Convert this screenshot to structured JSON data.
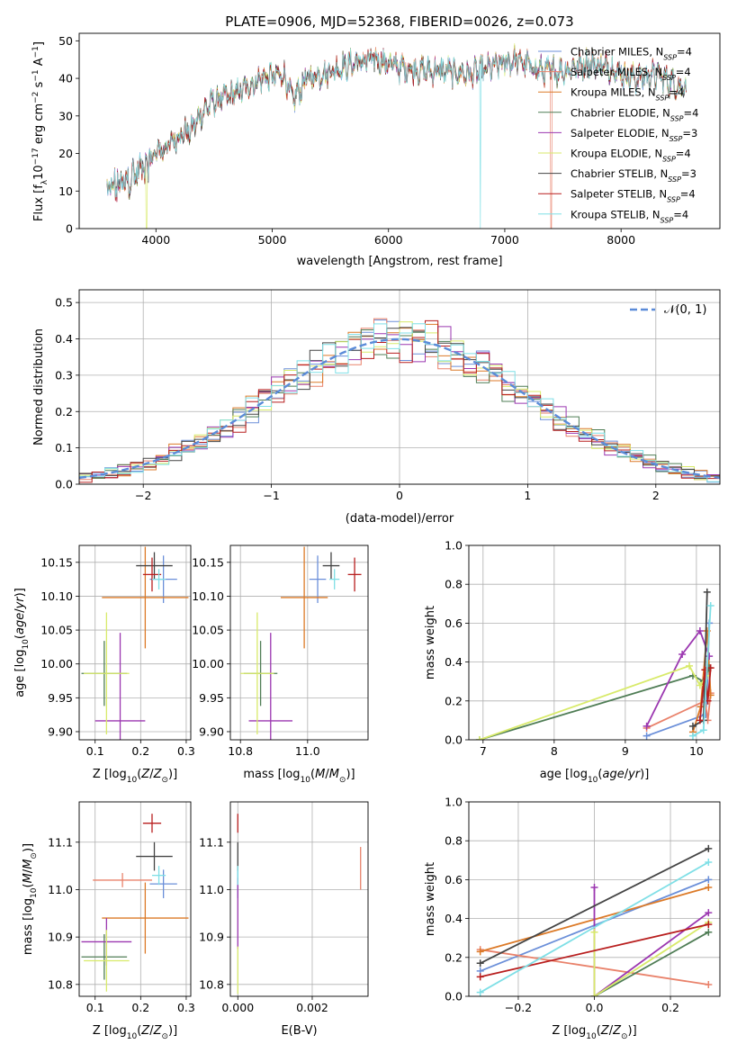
{
  "figure_title": "PLATE=0906, MJD=52368, FIBERID=0026, z=0.073",
  "series_colors": [
    "#6b8fd9",
    "#e9826b",
    "#dc7a28",
    "#4f7d55",
    "#9b37b0",
    "#d8ea6a",
    "#444444",
    "#b81e1e",
    "#7fdfe6"
  ],
  "chart_data": [
    {
      "id": "spectrum",
      "type": "line",
      "title": "PLATE=0906, MJD=52368, FIBERID=0026, z=0.073",
      "xlabel": "wavelength [Angstrom, rest frame]",
      "ylabel": "Flux [f_λ 10^-17 erg cm^-2 s^-1 A^-1]",
      "xlim": [
        3340,
        8850
      ],
      "ylim": [
        0,
        52
      ],
      "xticks": [
        4000,
        5000,
        6000,
        7000,
        8000
      ],
      "yticks": [
        0,
        10,
        20,
        30,
        40,
        50
      ],
      "legend_position": "right",
      "series": [
        {
          "name": "Chabrier MILES, N_SSP=4"
        },
        {
          "name": "Salpeter MILES, N_SSP=4"
        },
        {
          "name": "Kroupa MILES, N_SSP=4"
        },
        {
          "name": "Chabrier ELODIE, N_SSP=4"
        },
        {
          "name": "Salpeter ELODIE, N_SSP=3"
        },
        {
          "name": "Kroupa ELODIE, N_SSP=4"
        },
        {
          "name": "Chabrier STELIB, N_SSP=3"
        },
        {
          "name": "Salpeter STELIB, N_SSP=4"
        },
        {
          "name": "Kroupa STELIB, N_SSP=4"
        }
      ],
      "continuum": {
        "x": [
          3580,
          3700,
          3800,
          3900,
          4000,
          4100,
          4200,
          4300,
          4400,
          4500,
          4700,
          4900,
          5100,
          5175,
          5300,
          5500,
          5700,
          5900,
          6100,
          6300,
          6500,
          6700,
          6900,
          7100,
          7300,
          7500,
          7700,
          7900,
          8100,
          8300,
          8500
        ],
        "y": [
          10,
          12,
          14,
          16,
          20,
          22,
          25,
          26,
          31,
          34,
          36,
          40,
          41,
          34,
          40,
          42,
          44,
          45,
          43,
          42,
          42,
          41,
          43,
          45,
          42,
          42,
          44,
          43,
          40,
          41,
          38
        ]
      },
      "drop_edges": {
        "x": [
          3920,
          6790,
          7400
        ],
        "series": [
          5,
          8,
          1
        ]
      }
    },
    {
      "id": "residual-hist",
      "type": "line",
      "xlabel": "(data-model)/error",
      "ylabel": "Normed distribution",
      "xlim": [
        -2.5,
        2.5
      ],
      "ylim": [
        0,
        0.535
      ],
      "xticks": [
        -2,
        -1,
        0,
        1,
        2
      ],
      "yticks": [
        0.0,
        0.1,
        0.2,
        0.3,
        0.4,
        0.5
      ],
      "grid": true,
      "legend": "N(0, 1)",
      "legend_position": "upper-right",
      "bin_width": 0.1
    },
    {
      "id": "age-vs-z",
      "type": "scatter",
      "xlabel": "Z [log10(Z/Z_sun)]",
      "ylabel": "age [log10(age/yr)]",
      "xlim": [
        0.065,
        0.31
      ],
      "ylim": [
        9.888,
        10.175
      ],
      "xticks": [
        0.1,
        0.2,
        0.3
      ],
      "xtick_labels": [
        "0.1",
        "0.2",
        "0.3"
      ],
      "yticks": [
        9.9,
        9.95,
        10.0,
        10.05,
        10.1,
        10.15
      ],
      "ytick_labels": [
        "9.90",
        "9.95",
        "10.00",
        "10.05",
        "10.10",
        "10.15"
      ],
      "grid": true,
      "points": [
        {
          "series": 0,
          "x": 0.25,
          "y": 10.125,
          "xerr": 0.03,
          "yerr": 0.035
        },
        {
          "series": 2,
          "x": 0.21,
          "y": 10.098,
          "xerr": 0.095,
          "yerr": 0.075
        },
        {
          "series": 3,
          "x": 0.12,
          "y": 9.986,
          "xerr": 0.05,
          "yerr": 0.048
        },
        {
          "series": 4,
          "x": 0.155,
          "y": 9.916,
          "xerr": 0.055,
          "yerr": 0.13
        },
        {
          "series": 5,
          "x": 0.125,
          "y": 9.986,
          "xerr": 0.05,
          "yerr": 0.09
        },
        {
          "series": 6,
          "x": 0.23,
          "y": 10.145,
          "xerr": 0.04,
          "yerr": 0.02
        },
        {
          "series": 7,
          "x": 0.225,
          "y": 10.132,
          "xerr": 0.02,
          "yerr": 0.025
        },
        {
          "series": 8,
          "x": 0.24,
          "y": 10.125,
          "xerr": 0.015,
          "yerr": 0.015
        }
      ]
    },
    {
      "id": "age-vs-mass",
      "type": "scatter",
      "xlabel": "mass [log10(M/M_sun)]",
      "ylabel": "",
      "xlim": [
        10.77,
        11.18
      ],
      "ylim": [
        9.888,
        10.175
      ],
      "xticks": [
        10.8,
        11.0
      ],
      "xtick_labels": [
        "10.8",
        "11.0"
      ],
      "yticks": [
        9.9,
        9.95,
        10.0,
        10.05,
        10.1,
        10.15
      ],
      "ytick_labels": [
        "9.90",
        "9.95",
        "10.00",
        "10.05",
        "10.10",
        "10.15"
      ],
      "grid": true,
      "points": [
        {
          "series": 0,
          "x": 11.03,
          "y": 10.125,
          "xerr": 0.025,
          "yerr": 0.035
        },
        {
          "series": 2,
          "x": 10.99,
          "y": 10.098,
          "xerr": 0.07,
          "yerr": 0.075
        },
        {
          "series": 3,
          "x": 10.86,
          "y": 9.986,
          "xerr": 0.05,
          "yerr": 0.048
        },
        {
          "series": 4,
          "x": 10.89,
          "y": 9.916,
          "xerr": 0.065,
          "yerr": 0.13
        },
        {
          "series": 5,
          "x": 10.85,
          "y": 9.986,
          "xerr": 0.05,
          "yerr": 0.09
        },
        {
          "series": 6,
          "x": 11.07,
          "y": 10.145,
          "xerr": 0.025,
          "yerr": 0.02
        },
        {
          "series": 7,
          "x": 11.14,
          "y": 10.132,
          "xerr": 0.02,
          "yerr": 0.025
        },
        {
          "series": 8,
          "x": 11.08,
          "y": 10.125,
          "xerr": 0.015,
          "yerr": 0.015
        }
      ]
    },
    {
      "id": "weight-vs-age",
      "type": "line",
      "xlabel": "age [log10(age/yr)]",
      "ylabel": "mass weight",
      "xlim": [
        6.8,
        10.33
      ],
      "ylim": [
        0,
        1.0
      ],
      "xticks": [
        7,
        8,
        9,
        10
      ],
      "xtick_labels": [
        "7",
        "8",
        "9",
        "10"
      ],
      "yticks": [
        0.0,
        0.2,
        0.4,
        0.6,
        0.8,
        1.0
      ],
      "ytick_labels": [
        "0.0",
        "0.2",
        "0.4",
        "0.6",
        "0.8",
        "1.0"
      ],
      "grid": true,
      "series": [
        {
          "series": 0,
          "x": [
            9.3,
            10.13,
            10.15,
            10.18
          ],
          "y": [
            0.02,
            0.13,
            0.25,
            0.6
          ]
        },
        {
          "series": 1,
          "x": [
            9.3,
            10.12,
            10.16,
            10.2
          ],
          "y": [
            0.06,
            0.2,
            0.1,
            0.24
          ]
        },
        {
          "series": 2,
          "x": [
            9.95,
            10.06,
            10.15,
            10.2
          ],
          "y": [
            0.04,
            0.17,
            0.56,
            0.23
          ]
        },
        {
          "series": 3,
          "x": [
            6.95,
            9.95,
            10.1,
            10.18
          ],
          "y": [
            0.0,
            0.33,
            0.3,
            0.37
          ]
        },
        {
          "series": 4,
          "x": [
            9.3,
            9.8,
            10.05,
            10.18
          ],
          "y": [
            0.07,
            0.44,
            0.56,
            0.43
          ]
        },
        {
          "series": 5,
          "x": [
            6.95,
            9.9,
            10.05,
            10.15
          ],
          "y": [
            0.0,
            0.38,
            0.28,
            0.33
          ]
        },
        {
          "series": 6,
          "x": [
            9.95,
            10.1,
            10.15
          ],
          "y": [
            0.07,
            0.1,
            0.76
          ]
        },
        {
          "series": 7,
          "x": [
            10.05,
            10.12,
            10.16,
            10.2
          ],
          "y": [
            0.1,
            0.36,
            0.2,
            0.37
          ]
        },
        {
          "series": 8,
          "x": [
            9.95,
            10.1,
            10.2
          ],
          "y": [
            0.02,
            0.05,
            0.69
          ]
        }
      ]
    },
    {
      "id": "mass-vs-z",
      "type": "scatter",
      "xlabel": "Z [log10(Z/Z_sun)]",
      "ylabel": "mass [log10(M/M_sun)]",
      "xlim": [
        0.065,
        0.31
      ],
      "ylim": [
        10.775,
        11.185
      ],
      "xticks": [
        0.1,
        0.2,
        0.3
      ],
      "xtick_labels": [
        "0.1",
        "0.2",
        "0.3"
      ],
      "yticks": [
        10.8,
        10.9,
        11.0,
        11.1
      ],
      "ytick_labels": [
        "10.8",
        "10.9",
        "11.0",
        "11.1"
      ],
      "grid": true,
      "points": [
        {
          "series": 0,
          "x": 0.25,
          "y": 11.012,
          "xerr": 0.03,
          "yerr": 0.03
        },
        {
          "series": 1,
          "x": 0.16,
          "y": 11.02,
          "xerr": 0.065,
          "yerr": 0.015
        },
        {
          "series": 2,
          "x": 0.21,
          "y": 10.94,
          "xerr": 0.095,
          "yerr": 0.075
        },
        {
          "series": 3,
          "x": 0.12,
          "y": 10.858,
          "xerr": 0.05,
          "yerr": 0.048
        },
        {
          "series": 4,
          "x": 0.125,
          "y": 10.89,
          "xerr": 0.055,
          "yerr": 0.05
        },
        {
          "series": 5,
          "x": 0.125,
          "y": 10.85,
          "xerr": 0.05,
          "yerr": 0.065
        },
        {
          "series": 6,
          "x": 0.23,
          "y": 11.07,
          "xerr": 0.04,
          "yerr": 0.03
        },
        {
          "series": 7,
          "x": 0.225,
          "y": 11.14,
          "xerr": 0.02,
          "yerr": 0.02
        },
        {
          "series": 8,
          "x": 0.24,
          "y": 11.03,
          "xerr": 0.015,
          "yerr": 0.02
        }
      ]
    },
    {
      "id": "mass-vs-ebv",
      "type": "scatter",
      "xlabel": "E(B-V)",
      "ylabel": "",
      "xlim": [
        -0.0002,
        0.0035
      ],
      "ylim": [
        10.775,
        11.185
      ],
      "xticks": [
        0.0,
        0.002
      ],
      "xtick_labels": [
        "0.000",
        "0.002"
      ],
      "yticks": [
        10.8,
        10.9,
        11.0,
        11.1
      ],
      "ytick_labels": [
        "10.8",
        "10.9",
        "11.0",
        "11.1"
      ],
      "grid": true,
      "points": [
        {
          "series": 0,
          "x": 0.0,
          "y": 11.012,
          "xerr": 0,
          "yerr": 0.03
        },
        {
          "series": 1,
          "x": 0.0033,
          "y": 11.045,
          "xerr": 0,
          "yerr": 0.045
        },
        {
          "series": 4,
          "x": 0.0,
          "y": 10.95,
          "xerr": 0,
          "yerr": 0.075
        },
        {
          "series": 5,
          "x": 0.0,
          "y": 10.83,
          "xerr": 0,
          "yerr": 0.05
        },
        {
          "series": 6,
          "x": 0.0,
          "y": 11.07,
          "xerr": 0,
          "yerr": 0.03
        },
        {
          "series": 7,
          "x": 0.0,
          "y": 11.14,
          "xerr": 0,
          "yerr": 0.02
        },
        {
          "series": 8,
          "x": 0.0,
          "y": 11.03,
          "xerr": 0,
          "yerr": 0.02
        }
      ]
    },
    {
      "id": "weight-vs-z",
      "type": "line",
      "xlabel": "Z [log10(Z/Z_sun)]",
      "ylabel": "mass weight",
      "xlim": [
        -0.33,
        0.33
      ],
      "ylim": [
        0,
        1.0
      ],
      "xticks": [
        -0.2,
        0.0,
        0.2
      ],
      "xtick_labels": [
        "−0.2",
        "0.0",
        "0.2"
      ],
      "yticks": [
        0.0,
        0.2,
        0.4,
        0.6,
        0.8,
        1.0
      ],
      "ytick_labels": [
        "0.0",
        "0.2",
        "0.4",
        "0.6",
        "0.8",
        "1.0"
      ],
      "grid": true,
      "series": [
        {
          "series": 0,
          "x": [
            -0.3,
            0.3
          ],
          "y": [
            0.13,
            0.6
          ]
        },
        {
          "series": 1,
          "x": [
            -0.3,
            0.3
          ],
          "y": [
            0.24,
            0.06
          ]
        },
        {
          "series": 2,
          "x": [
            -0.3,
            0.3
          ],
          "y": [
            0.23,
            0.56
          ]
        },
        {
          "series": 3,
          "x": [
            0.0,
            0.3
          ],
          "y": [
            0.0,
            0.33
          ]
        },
        {
          "series": 4,
          "x": [
            0.0,
            0.0,
            0.3
          ],
          "y": [
            0.56,
            0.0,
            0.43
          ]
        },
        {
          "series": 5,
          "x": [
            0.0,
            0.0,
            0.3
          ],
          "y": [
            0.33,
            0.0,
            0.38
          ]
        },
        {
          "series": 6,
          "x": [
            -0.3,
            0.3
          ],
          "y": [
            0.17,
            0.76
          ]
        },
        {
          "series": 7,
          "x": [
            -0.3,
            0.3
          ],
          "y": [
            0.1,
            0.37
          ]
        },
        {
          "series": 8,
          "x": [
            -0.3,
            0.3
          ],
          "y": [
            0.02,
            0.69
          ]
        }
      ]
    }
  ]
}
